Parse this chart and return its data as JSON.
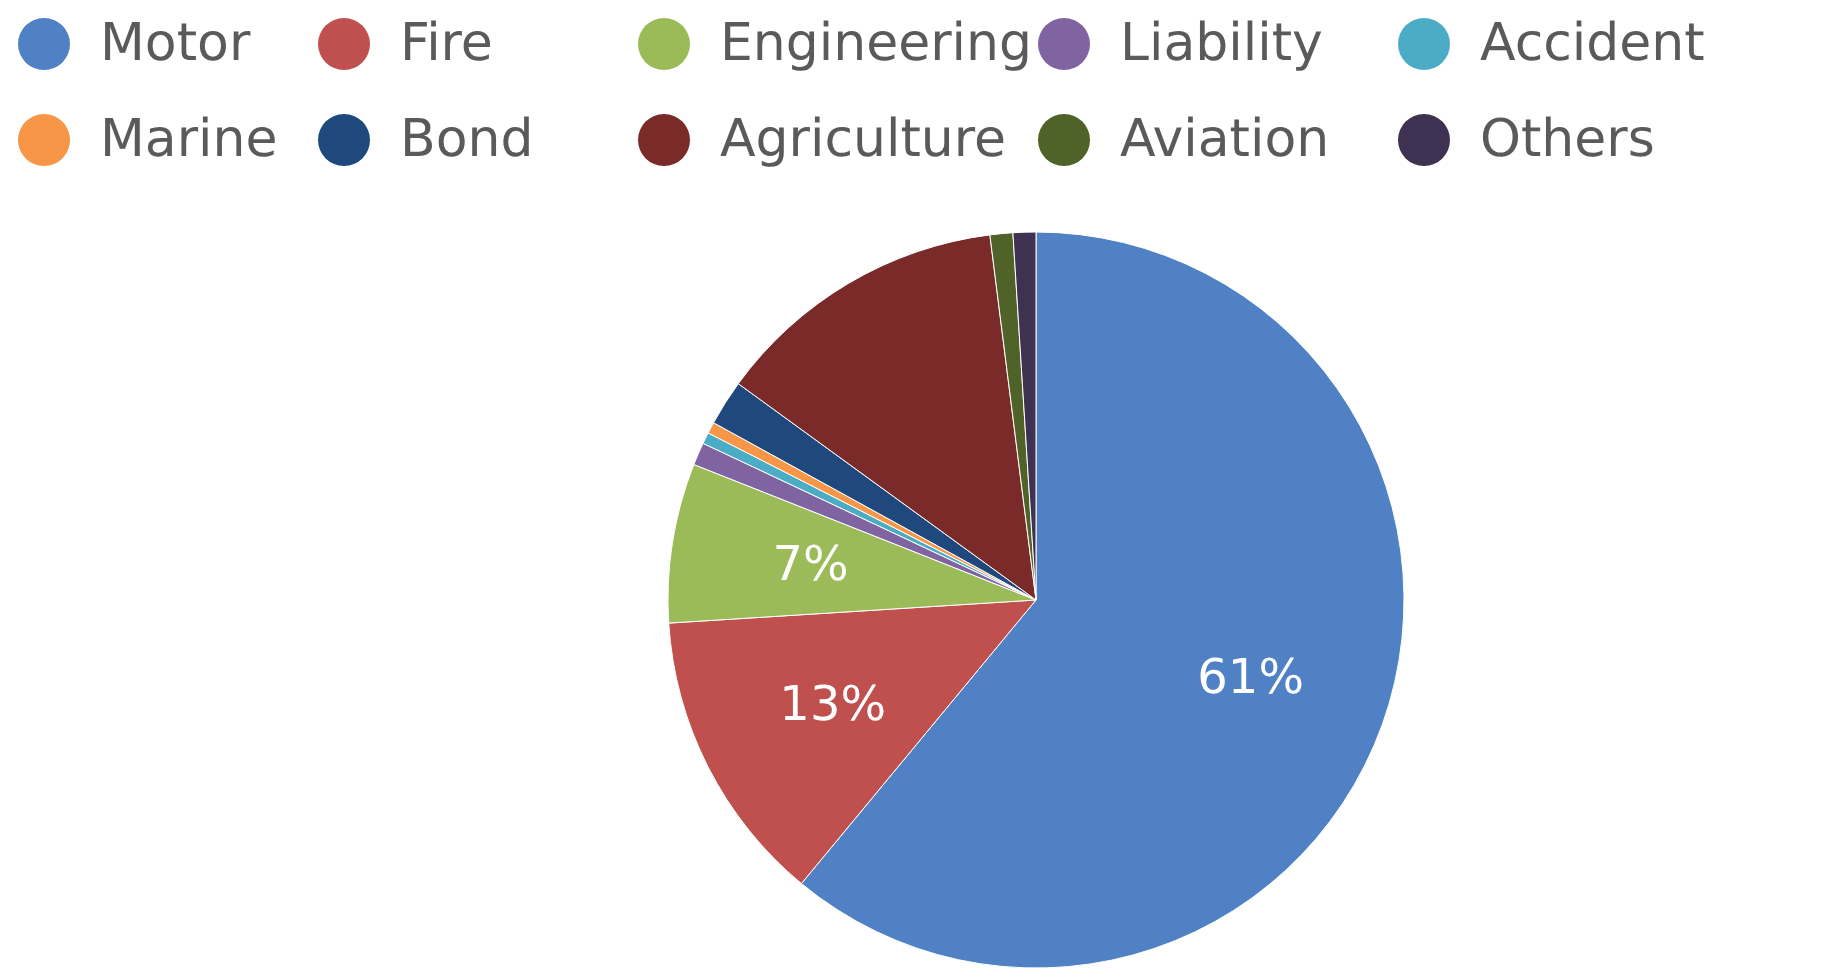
{
  "chart_data": {
    "type": "pie",
    "categories": [
      "Motor",
      "Fire",
      "Engineering",
      "Liability",
      "Accident",
      "Marine",
      "Bond",
      "Agriculture",
      "Aviation",
      "Others"
    ],
    "values": [
      61,
      13,
      7,
      1,
      0.5,
      0.5,
      2,
      13,
      1,
      1
    ],
    "colors": [
      "#4f81c4",
      "#c0504d",
      "#9bbb59",
      "#8064a2",
      "#4bacc6",
      "#f79646",
      "#1f497d",
      "#7b2a2a",
      "#4f6228",
      "#3f3151"
    ],
    "value_labels": [
      "61%",
      "13%",
      "7%",
      null,
      null,
      null,
      null,
      null,
      null,
      null
    ],
    "legend": "top"
  }
}
